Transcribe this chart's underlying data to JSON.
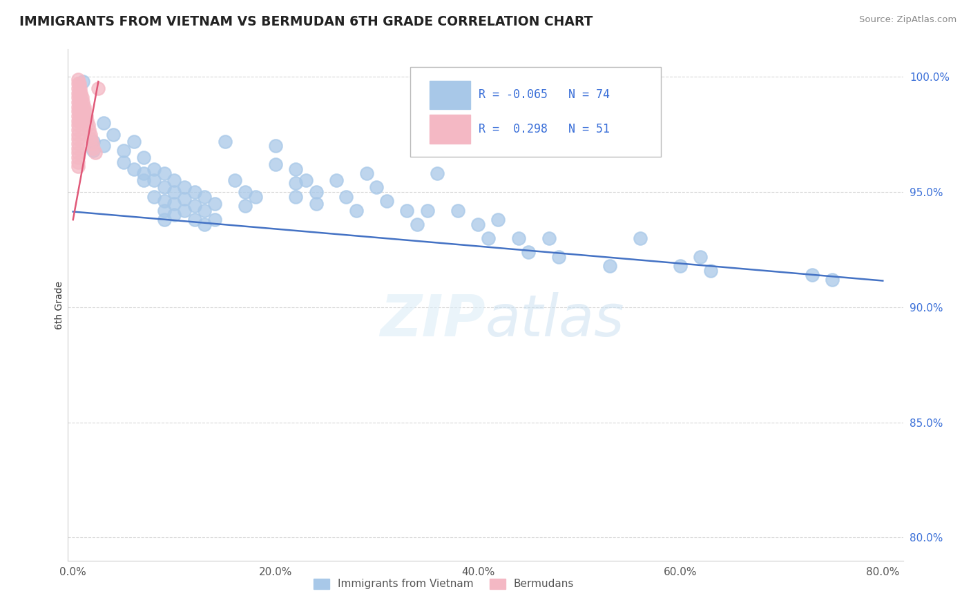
{
  "title": "IMMIGRANTS FROM VIETNAM VS BERMUDAN 6TH GRADE CORRELATION CHART",
  "source": "Source: ZipAtlas.com",
  "ylabel_label": "6th Grade",
  "watermark": "ZIPatlas",
  "legend_blue_r": "-0.065",
  "legend_blue_n": "74",
  "legend_pink_r": "0.298",
  "legend_pink_n": "51",
  "x_tick_labels": [
    "0.0%",
    "20.0%",
    "40.0%",
    "60.0%",
    "80.0%"
  ],
  "x_ticks": [
    0.0,
    0.2,
    0.4,
    0.6,
    0.8
  ],
  "y_ticks": [
    0.8,
    0.85,
    0.9,
    0.95,
    1.0
  ],
  "y_tick_labels": [
    "80.0%",
    "85.0%",
    "90.0%",
    "95.0%",
    "100.0%"
  ],
  "blue_marker_color": "#a8c8e8",
  "pink_marker_color": "#f4b8c4",
  "line_blue_color": "#4472c4",
  "line_pink_color": "#e05878",
  "blue_scatter": [
    [
      0.01,
      0.998
    ],
    [
      0.02,
      0.972
    ],
    [
      0.02,
      0.968
    ],
    [
      0.03,
      0.98
    ],
    [
      0.03,
      0.97
    ],
    [
      0.04,
      0.975
    ],
    [
      0.05,
      0.968
    ],
    [
      0.05,
      0.963
    ],
    [
      0.06,
      0.972
    ],
    [
      0.06,
      0.96
    ],
    [
      0.07,
      0.965
    ],
    [
      0.07,
      0.958
    ],
    [
      0.07,
      0.955
    ],
    [
      0.08,
      0.96
    ],
    [
      0.08,
      0.955
    ],
    [
      0.08,
      0.948
    ],
    [
      0.09,
      0.958
    ],
    [
      0.09,
      0.952
    ],
    [
      0.09,
      0.946
    ],
    [
      0.09,
      0.942
    ],
    [
      0.09,
      0.938
    ],
    [
      0.1,
      0.955
    ],
    [
      0.1,
      0.95
    ],
    [
      0.1,
      0.945
    ],
    [
      0.1,
      0.94
    ],
    [
      0.11,
      0.952
    ],
    [
      0.11,
      0.947
    ],
    [
      0.11,
      0.942
    ],
    [
      0.12,
      0.95
    ],
    [
      0.12,
      0.944
    ],
    [
      0.12,
      0.938
    ],
    [
      0.13,
      0.948
    ],
    [
      0.13,
      0.942
    ],
    [
      0.13,
      0.936
    ],
    [
      0.14,
      0.945
    ],
    [
      0.14,
      0.938
    ],
    [
      0.15,
      0.972
    ],
    [
      0.16,
      0.955
    ],
    [
      0.17,
      0.95
    ],
    [
      0.17,
      0.944
    ],
    [
      0.18,
      0.948
    ],
    [
      0.2,
      0.97
    ],
    [
      0.2,
      0.962
    ],
    [
      0.22,
      0.96
    ],
    [
      0.22,
      0.954
    ],
    [
      0.22,
      0.948
    ],
    [
      0.23,
      0.955
    ],
    [
      0.24,
      0.95
    ],
    [
      0.24,
      0.945
    ],
    [
      0.26,
      0.955
    ],
    [
      0.27,
      0.948
    ],
    [
      0.28,
      0.942
    ],
    [
      0.29,
      0.958
    ],
    [
      0.3,
      0.952
    ],
    [
      0.31,
      0.946
    ],
    [
      0.33,
      0.942
    ],
    [
      0.34,
      0.936
    ],
    [
      0.35,
      0.942
    ],
    [
      0.36,
      0.958
    ],
    [
      0.38,
      0.942
    ],
    [
      0.4,
      0.936
    ],
    [
      0.41,
      0.93
    ],
    [
      0.42,
      0.938
    ],
    [
      0.44,
      0.93
    ],
    [
      0.45,
      0.924
    ],
    [
      0.47,
      0.93
    ],
    [
      0.48,
      0.922
    ],
    [
      0.53,
      0.918
    ],
    [
      0.56,
      0.93
    ],
    [
      0.6,
      0.918
    ],
    [
      0.62,
      0.922
    ],
    [
      0.63,
      0.916
    ],
    [
      0.73,
      0.914
    ],
    [
      0.75,
      0.912
    ]
  ],
  "pink_scatter": [
    [
      0.005,
      0.999
    ],
    [
      0.005,
      0.997
    ],
    [
      0.005,
      0.995
    ],
    [
      0.005,
      0.993
    ],
    [
      0.005,
      0.991
    ],
    [
      0.005,
      0.989
    ],
    [
      0.005,
      0.987
    ],
    [
      0.005,
      0.985
    ],
    [
      0.005,
      0.983
    ],
    [
      0.005,
      0.981
    ],
    [
      0.005,
      0.979
    ],
    [
      0.005,
      0.977
    ],
    [
      0.005,
      0.975
    ],
    [
      0.005,
      0.973
    ],
    [
      0.005,
      0.971
    ],
    [
      0.005,
      0.969
    ],
    [
      0.005,
      0.967
    ],
    [
      0.005,
      0.965
    ],
    [
      0.005,
      0.963
    ],
    [
      0.005,
      0.961
    ],
    [
      0.006,
      0.997
    ],
    [
      0.006,
      0.993
    ],
    [
      0.006,
      0.989
    ],
    [
      0.006,
      0.985
    ],
    [
      0.006,
      0.981
    ],
    [
      0.007,
      0.995
    ],
    [
      0.007,
      0.991
    ],
    [
      0.007,
      0.987
    ],
    [
      0.007,
      0.983
    ],
    [
      0.008,
      0.993
    ],
    [
      0.008,
      0.989
    ],
    [
      0.008,
      0.985
    ],
    [
      0.009,
      0.991
    ],
    [
      0.009,
      0.987
    ],
    [
      0.009,
      0.983
    ],
    [
      0.01,
      0.989
    ],
    [
      0.01,
      0.985
    ],
    [
      0.011,
      0.987
    ],
    [
      0.011,
      0.983
    ],
    [
      0.012,
      0.985
    ],
    [
      0.012,
      0.981
    ],
    [
      0.013,
      0.983
    ],
    [
      0.014,
      0.981
    ],
    [
      0.015,
      0.979
    ],
    [
      0.016,
      0.977
    ],
    [
      0.017,
      0.975
    ],
    [
      0.018,
      0.973
    ],
    [
      0.019,
      0.971
    ],
    [
      0.02,
      0.969
    ],
    [
      0.022,
      0.967
    ],
    [
      0.025,
      0.995
    ]
  ],
  "blue_line_x": [
    0.0,
    0.8
  ],
  "blue_line_y": [
    0.9415,
    0.9115
  ],
  "pink_line_x": [
    0.0,
    0.025
  ],
  "pink_line_y": [
    0.938,
    0.998
  ]
}
